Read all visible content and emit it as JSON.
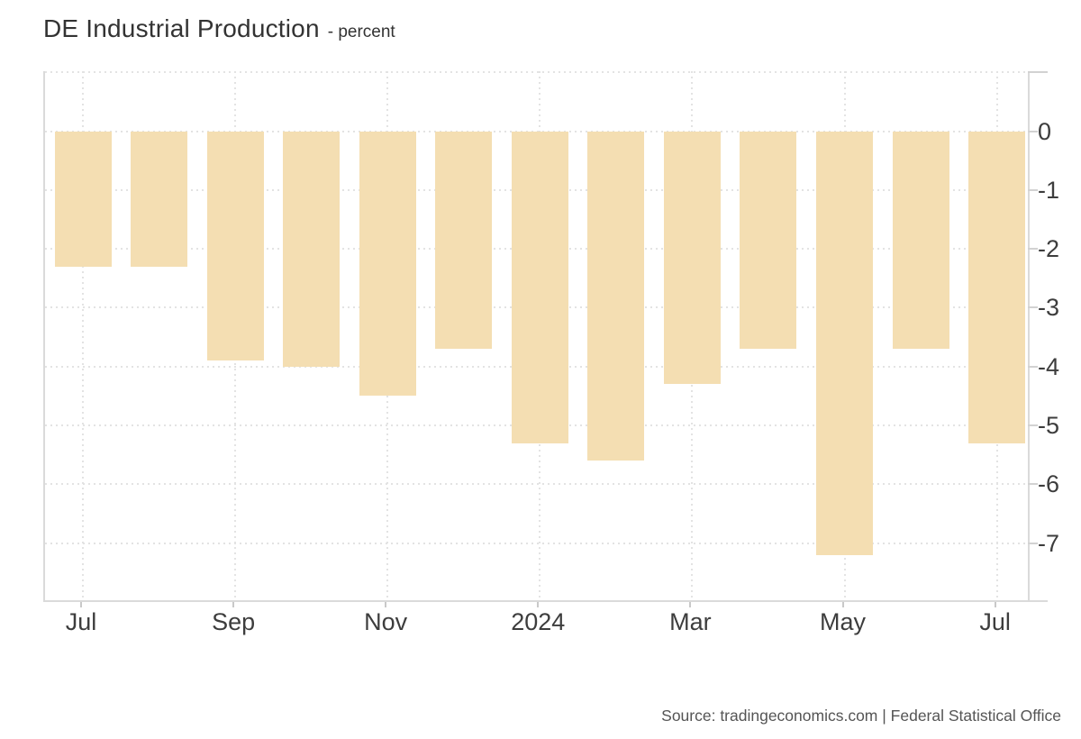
{
  "header": {
    "title": "DE Industrial Production",
    "subtitle": "- percent"
  },
  "source": {
    "text": "Source: tradingeconomics.com | Federal Statistical Office"
  },
  "colors": {
    "bar": "#F4DEB2",
    "grid": "#E3E3E3",
    "axis": "#DADADA",
    "tick_text": "#3D3D3D",
    "title_text": "#333333",
    "source_text": "#555555",
    "background": "#FFFFFF"
  },
  "chart_data": {
    "type": "bar",
    "title": "DE Industrial Production",
    "subtitle_unit": "percent",
    "xlabel": "",
    "ylabel": "percent",
    "categories": [
      "Jul 2023",
      "Aug 2023",
      "Sep 2023",
      "Oct 2023",
      "Nov 2023",
      "Dec 2023",
      "Jan 2024",
      "Feb 2024",
      "Mar 2024",
      "Apr 2024",
      "May 2024",
      "Jun 2024",
      "Jul 2024"
    ],
    "values": [
      -2.3,
      -2.3,
      -3.9,
      -4.0,
      -4.5,
      -3.7,
      -5.3,
      -5.6,
      -4.3,
      -3.7,
      -7.2,
      -3.7,
      -5.3
    ],
    "x_tick_labels": [
      {
        "index": 0,
        "label": "Jul"
      },
      {
        "index": 2,
        "label": "Sep"
      },
      {
        "index": 4,
        "label": "Nov"
      },
      {
        "index": 6,
        "label": "2024"
      },
      {
        "index": 8,
        "label": "Mar"
      },
      {
        "index": 10,
        "label": "May"
      },
      {
        "index": 12,
        "label": "Jul"
      }
    ],
    "y_ticks": [
      0,
      -1,
      -2,
      -3,
      -4,
      -5,
      -6,
      -7
    ],
    "y_gridlines": [
      1,
      0,
      -1,
      -2,
      -3,
      -4,
      -5,
      -6,
      -7
    ],
    "ylim": [
      -8.0,
      1.02
    ],
    "grid": "dotted",
    "legend_position": "none",
    "bar_count": 13
  }
}
